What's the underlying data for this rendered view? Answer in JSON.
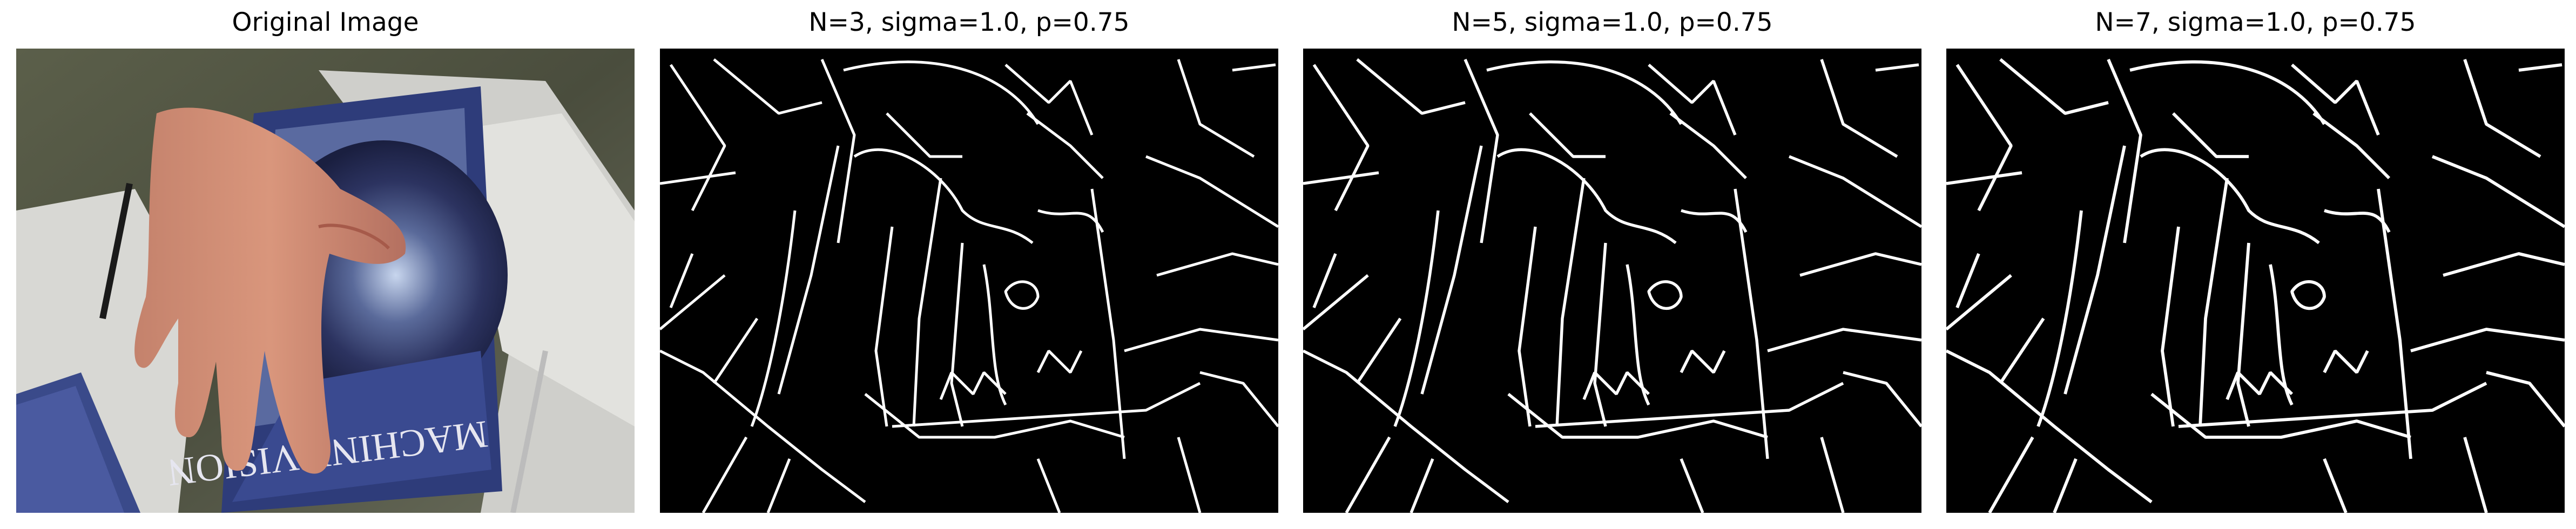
{
  "panels": [
    {
      "title": "Original Image"
    },
    {
      "title": "N=3, sigma=1.0, p=0.75"
    },
    {
      "title": "N=5, sigma=1.0, p=0.75"
    },
    {
      "title": "N=7, sigma=1.0, p=0.75"
    }
  ],
  "book_cover_text": "MACHINE VISION",
  "colors": {
    "edge_bg": "#000000",
    "edge_line": "#ffffff"
  }
}
